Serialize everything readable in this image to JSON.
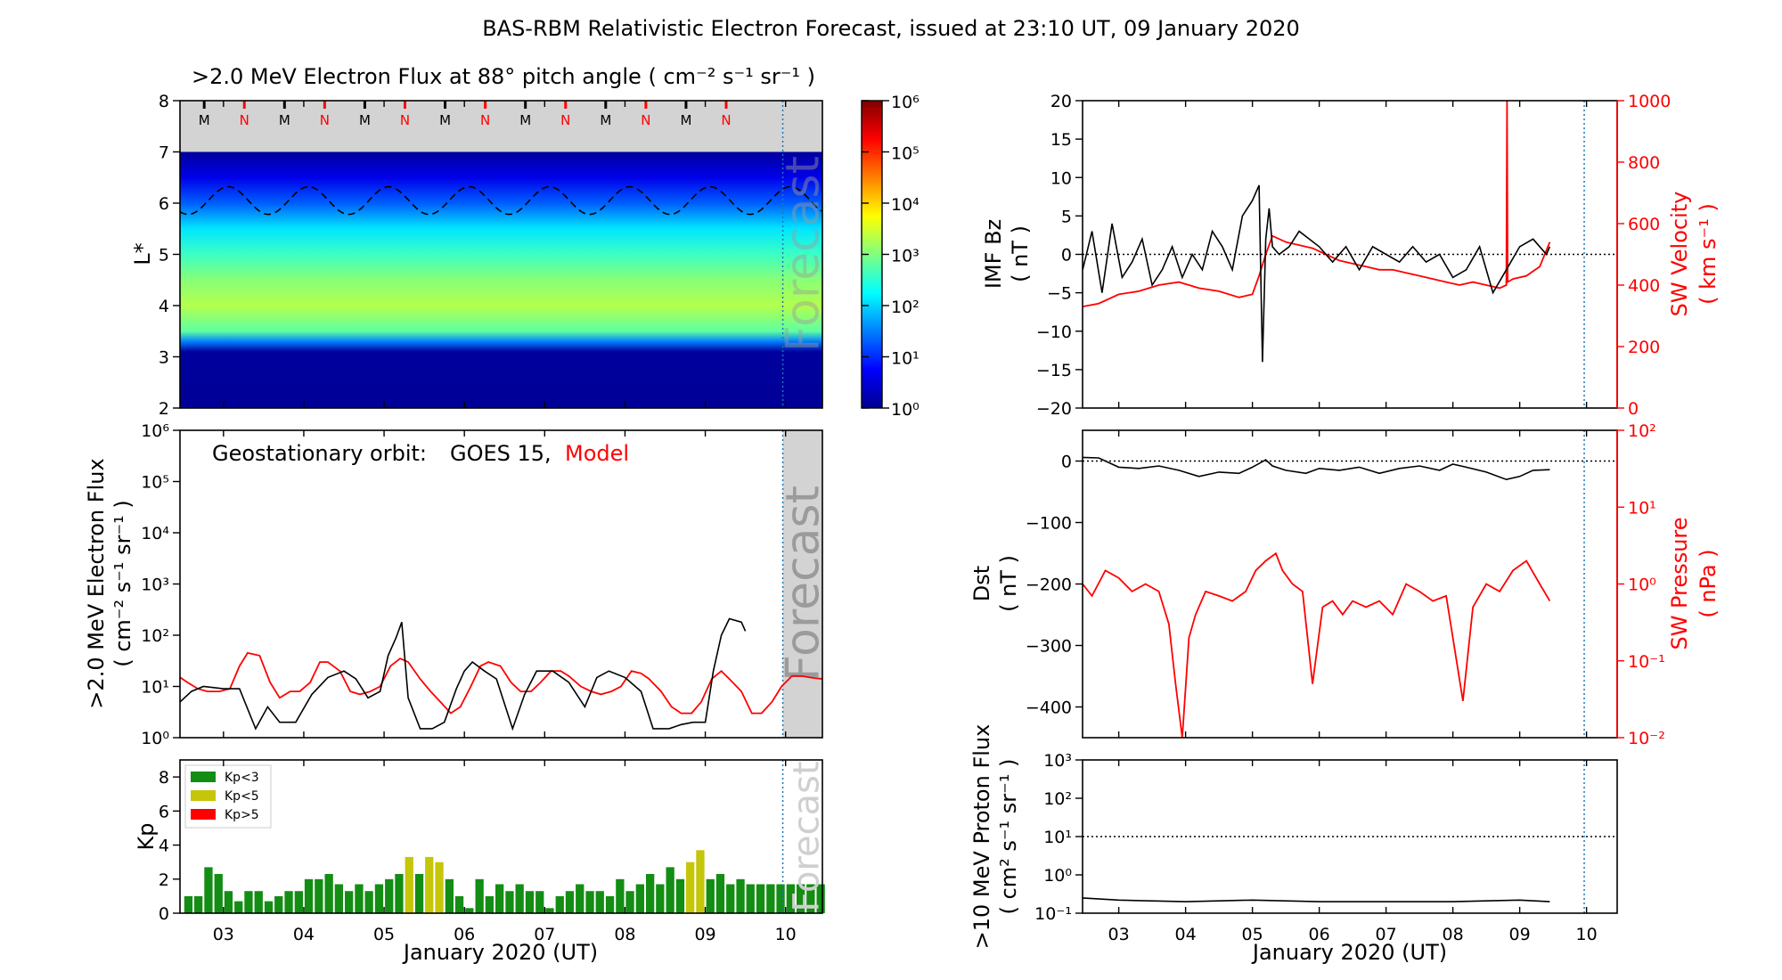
{
  "title": "BAS-RBM Relativistic Electron Forecast, issued at 23:10 UT, 09 January 2020",
  "colors": {
    "observed": "#000000",
    "model": "#ff0000",
    "forecast_shade": "#d3d3d3",
    "forecast_line": "#1f77b4",
    "kp_low": "#138d13",
    "kp_mid": "#c5c50a",
    "kp_high": "#ff0000"
  },
  "x_axis": {
    "label": "January 2020 (UT)",
    "range": [
      "2020-01-02T11:00",
      "2020-01-10T11:00"
    ],
    "ticks": [
      "03",
      "04",
      "05",
      "06",
      "07",
      "08",
      "09",
      "10"
    ],
    "forecast_start": "2020-01-09T23:10"
  },
  "chart_data": [
    {
      "type": "heatmap",
      "title": ">2.0 MeV Electron Flux at 88° pitch angle ( cm⁻² s⁻¹ sr⁻¹ )",
      "ylabel": "L*",
      "ylim": [
        2,
        8
      ],
      "yticks": [
        "2",
        "3",
        "4",
        "5",
        "6",
        "7",
        "8"
      ],
      "colorbar": {
        "scale": "log",
        "range": [
          1,
          1000000
        ],
        "ticks": [
          "10⁰",
          "10¹",
          "10²",
          "10³",
          "10⁴",
          "10⁵",
          "10⁶"
        ]
      },
      "flux_profile": [
        {
          "L": 2.0,
          "log_flux": 0.05
        },
        {
          "L": 3.1,
          "log_flux": 0.1
        },
        {
          "L": 3.3,
          "log_flux": 1.5
        },
        {
          "L": 3.5,
          "log_flux": 2.8
        },
        {
          "L": 4.0,
          "log_flux": 3.3
        },
        {
          "L": 4.5,
          "log_flux": 3.05
        },
        {
          "L": 5.0,
          "log_flux": 2.6
        },
        {
          "L": 5.5,
          "log_flux": 2.1
        },
        {
          "L": 6.0,
          "log_flux": 1.3
        },
        {
          "L": 6.5,
          "log_flux": 0.6
        },
        {
          "L": 7.0,
          "log_flux": 0.1
        }
      ],
      "data_limit_L": 7.0,
      "geo_orbit_L": {
        "mean": 6.05,
        "amplitude": 0.27,
        "period_days": 1
      },
      "mlt_markers": [
        "M",
        "N",
        "M",
        "N",
        "M",
        "N",
        "M",
        "N",
        "M",
        "N",
        "M",
        "N",
        "M",
        "N"
      ],
      "forecast_label": "Forecast"
    },
    {
      "type": "line",
      "ylabel": ">2.0 MeV Electron Flux",
      "yunit": "( cm⁻² s⁻¹ sr⁻¹ )",
      "yscale": "log",
      "ylim": [
        1,
        1000000
      ],
      "yticks": [
        "10⁰",
        "10¹",
        "10²",
        "10³",
        "10⁴",
        "10⁵",
        "10⁶"
      ],
      "legend": {
        "prefix": "Geostationary orbit:",
        "observed": "GOES 15,",
        "model": "Model"
      },
      "forecast_label": "Forecast",
      "series": [
        {
          "name": "GOES 15",
          "color": "#000000",
          "x": [
            2.46,
            2.6,
            2.75,
            3.0,
            3.2,
            3.4,
            3.55,
            3.7,
            3.9,
            4.1,
            4.3,
            4.5,
            4.65,
            4.8,
            4.95,
            5.05,
            5.15,
            5.22,
            5.3,
            5.45,
            5.6,
            5.75,
            5.9,
            6.0,
            6.1,
            6.25,
            6.4,
            6.6,
            6.75,
            6.9,
            7.1,
            7.3,
            7.5,
            7.65,
            7.8,
            8.0,
            8.2,
            8.35,
            8.55,
            8.7,
            8.85,
            9.0,
            9.1,
            9.2,
            9.3,
            9.45,
            9.5
          ],
          "y": [
            5,
            8,
            10,
            9,
            9,
            1.5,
            4,
            2,
            2,
            7,
            15,
            20,
            14,
            6,
            8,
            40,
            90,
            180,
            6,
            1.5,
            1.5,
            2,
            9,
            20,
            30,
            20,
            14,
            1.5,
            7,
            20,
            20,
            12,
            4,
            15,
            20,
            15,
            8,
            1.5,
            1.5,
            1.8,
            2,
            2,
            20,
            100,
            210,
            180,
            120
          ]
        },
        {
          "name": "Model",
          "color": "#ff0000",
          "x": [
            2.46,
            2.55,
            2.68,
            2.8,
            2.95,
            3.08,
            3.2,
            3.3,
            3.45,
            3.58,
            3.7,
            3.83,
            3.95,
            4.08,
            4.2,
            4.3,
            4.45,
            4.58,
            4.7,
            4.83,
            4.95,
            5.08,
            5.2,
            5.3,
            5.45,
            5.58,
            5.7,
            5.83,
            5.95,
            6.08,
            6.2,
            6.3,
            6.45,
            6.58,
            6.7,
            6.83,
            6.95,
            7.08,
            7.2,
            7.3,
            7.45,
            7.58,
            7.7,
            7.83,
            7.95,
            8.08,
            8.2,
            8.3,
            8.45,
            8.58,
            8.7,
            8.83,
            8.95,
            9.08,
            9.2,
            9.3,
            9.45,
            9.58,
            9.7,
            9.83,
            9.95,
            10.08,
            10.2,
            10.3,
            10.46
          ],
          "y": [
            15,
            12,
            9,
            8,
            8,
            9,
            25,
            45,
            40,
            12,
            6,
            8,
            8,
            12,
            30,
            30,
            20,
            8,
            7,
            8,
            10,
            25,
            35,
            30,
            14,
            8,
            5,
            3,
            4,
            10,
            25,
            30,
            25,
            12,
            8,
            8,
            12,
            20,
            20,
            16,
            10,
            8,
            7,
            8,
            10,
            20,
            18,
            14,
            8,
            4,
            3,
            3,
            5,
            14,
            20,
            14,
            8,
            3,
            3,
            5,
            10,
            16,
            16,
            15,
            14
          ]
        }
      ]
    },
    {
      "type": "bar",
      "ylabel": "Kp",
      "ylim": [
        0,
        9
      ],
      "yticks": [
        "0",
        "2",
        "4",
        "6",
        "8"
      ],
      "legend": [
        "Kp<3",
        "Kp<5",
        "Kp>5"
      ],
      "forecast_label": "Forecast",
      "bar_width_hours": 3,
      "start": "2020-01-02T12:00",
      "values": [
        1.0,
        1.0,
        2.7,
        2.3,
        1.3,
        0.7,
        1.3,
        1.3,
        0.7,
        1.0,
        1.3,
        1.3,
        2.0,
        2.0,
        2.3,
        1.7,
        1.3,
        1.7,
        1.3,
        1.7,
        2.0,
        2.3,
        3.3,
        2.3,
        3.3,
        3.0,
        2.0,
        1.0,
        0.3,
        2.0,
        1.0,
        1.7,
        1.3,
        1.7,
        1.3,
        1.3,
        0.3,
        1.0,
        1.3,
        1.7,
        1.3,
        1.3,
        1.0,
        2.0,
        1.3,
        1.7,
        2.3,
        1.7,
        2.7,
        2.0,
        3.0,
        3.7,
        2.0,
        2.3,
        1.7,
        2.0,
        1.7,
        1.7,
        1.7,
        1.7,
        1.7,
        1.7,
        1.7,
        1.7
      ]
    },
    {
      "type": "line",
      "ylabel": "IMF Bz",
      "yunit": "( nT )",
      "ylim": [
        -20,
        20
      ],
      "yticks": [
        "−20",
        "−15",
        "−10",
        "−5",
        "0",
        "5",
        "10",
        "15",
        "20"
      ],
      "y2label": "SW Velocity",
      "y2unit": "( km s⁻¹ )",
      "y2lim": [
        0,
        1000
      ],
      "y2ticks": [
        "0",
        "200",
        "400",
        "600",
        "800",
        "1000"
      ],
      "series": [
        {
          "name": "IMF Bz",
          "color": "#000000",
          "x": [
            2.46,
            2.6,
            2.75,
            2.9,
            3.05,
            3.2,
            3.35,
            3.5,
            3.65,
            3.8,
            3.95,
            4.1,
            4.25,
            4.4,
            4.55,
            4.7,
            4.85,
            5.0,
            5.1,
            5.15,
            5.2,
            5.25,
            5.3,
            5.4,
            5.55,
            5.7,
            5.85,
            6.0,
            6.2,
            6.4,
            6.6,
            6.8,
            7.0,
            7.2,
            7.4,
            7.6,
            7.8,
            8.0,
            8.2,
            8.4,
            8.6,
            8.8,
            9.0,
            9.2,
            9.4,
            9.45
          ],
          "y": [
            -2,
            3,
            -5,
            4,
            -3,
            -1,
            2,
            -4,
            -2,
            1,
            -3,
            0,
            -2,
            3,
            1,
            -2,
            5,
            7,
            9,
            -14,
            2,
            6,
            1,
            0,
            1,
            3,
            2,
            1,
            -1,
            1,
            -2,
            1,
            0,
            -1,
            1,
            -1,
            0,
            -3,
            -2,
            1,
            -5,
            -2,
            1,
            2,
            0,
            1
          ]
        },
        {
          "name": "SW Velocity",
          "color": "#ff0000",
          "axis": "right",
          "x": [
            2.46,
            2.7,
            3.0,
            3.3,
            3.6,
            3.9,
            4.2,
            4.5,
            4.8,
            5.0,
            5.1,
            5.2,
            5.3,
            5.5,
            5.7,
            5.9,
            6.1,
            6.3,
            6.5,
            6.7,
            6.9,
            7.1,
            7.3,
            7.5,
            7.7,
            7.9,
            8.1,
            8.3,
            8.5,
            8.7,
            8.8,
            8.81,
            8.82,
            8.9,
            9.1,
            9.3,
            9.45
          ],
          "y": [
            330,
            340,
            370,
            380,
            400,
            410,
            390,
            380,
            360,
            370,
            430,
            500,
            560,
            540,
            530,
            520,
            500,
            480,
            470,
            460,
            450,
            450,
            440,
            430,
            420,
            410,
            400,
            410,
            400,
            390,
            400,
            1000,
            410,
            420,
            430,
            460,
            540
          ]
        }
      ]
    },
    {
      "type": "line",
      "ylabel": "Dst",
      "yunit": "( nT )",
      "ylim": [
        -450,
        50
      ],
      "yticks": [
        "−400",
        "−300",
        "−200",
        "−100",
        "0"
      ],
      "y2label": "SW Pressure",
      "y2unit": "( nPa )",
      "y2scale": "log",
      "y2lim": [
        0.01,
        100
      ],
      "y2ticks": [
        "10⁻²",
        "10⁻¹",
        "10⁰",
        "10¹",
        "10²"
      ],
      "series": [
        {
          "name": "Dst",
          "color": "#000000",
          "x": [
            2.46,
            2.7,
            3.0,
            3.3,
            3.6,
            3.9,
            4.2,
            4.5,
            4.8,
            5.0,
            5.2,
            5.3,
            5.5,
            5.8,
            6.0,
            6.3,
            6.6,
            6.9,
            7.2,
            7.5,
            7.8,
            8.0,
            8.2,
            8.5,
            8.8,
            9.0,
            9.2,
            9.45
          ],
          "y": [
            6,
            5,
            -10,
            -12,
            -8,
            -15,
            -25,
            -18,
            -20,
            -10,
            2,
            -8,
            -15,
            -20,
            -12,
            -15,
            -10,
            -20,
            -12,
            -8,
            -15,
            -5,
            -10,
            -18,
            -30,
            -25,
            -15,
            -14
          ]
        },
        {
          "name": "SW Pressure",
          "color": "#ff0000",
          "axis": "right",
          "x": [
            2.46,
            2.6,
            2.8,
            3.0,
            3.2,
            3.4,
            3.6,
            3.75,
            3.85,
            3.95,
            4.05,
            4.15,
            4.3,
            4.5,
            4.7,
            4.9,
            5.05,
            5.2,
            5.35,
            5.45,
            5.6,
            5.75,
            5.9,
            6.05,
            6.2,
            6.35,
            6.5,
            6.7,
            6.9,
            7.1,
            7.3,
            7.5,
            7.7,
            7.9,
            8.0,
            8.15,
            8.3,
            8.5,
            8.7,
            8.9,
            9.1,
            9.3,
            9.45
          ],
          "y": [
            1.0,
            0.7,
            1.5,
            1.2,
            0.8,
            1.0,
            0.8,
            0.3,
            0.05,
            0.01,
            0.2,
            0.4,
            0.8,
            0.7,
            0.6,
            0.8,
            1.5,
            2.0,
            2.5,
            1.5,
            1.0,
            0.8,
            0.05,
            0.5,
            0.6,
            0.4,
            0.6,
            0.5,
            0.6,
            0.4,
            1.0,
            0.8,
            0.6,
            0.7,
            0.2,
            0.03,
            0.5,
            1.0,
            0.8,
            1.5,
            2.0,
            1.0,
            0.6
          ]
        }
      ]
    },
    {
      "type": "line",
      "ylabel": ">10 MeV Proton Flux",
      "yunit": "( cm² s⁻¹ sr⁻¹ )",
      "yscale": "log",
      "ylim": [
        0.1,
        1000
      ],
      "yticks": [
        "10⁻¹",
        "10⁰",
        "10¹",
        "10²",
        "10³"
      ],
      "threshold": 10,
      "series": [
        {
          "name": ">10 MeV Proton Flux",
          "color": "#000000",
          "x": [
            2.46,
            3.0,
            4.0,
            5.0,
            6.0,
            7.0,
            8.0,
            9.0,
            9.45
          ],
          "y": [
            0.25,
            0.22,
            0.2,
            0.22,
            0.2,
            0.2,
            0.2,
            0.22,
            0.2
          ]
        }
      ]
    }
  ]
}
